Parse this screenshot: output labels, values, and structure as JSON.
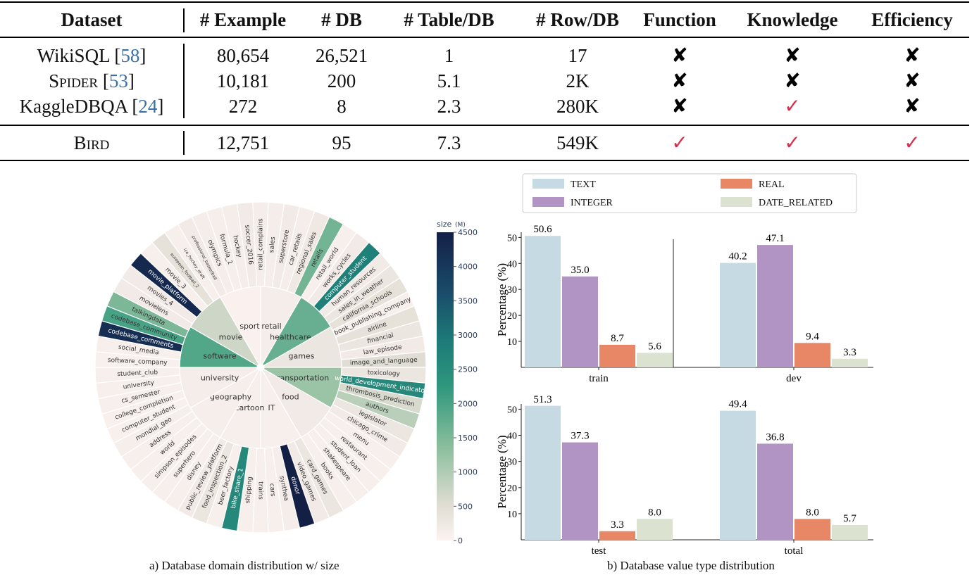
{
  "table": {
    "headers": [
      "Dataset",
      "# Example",
      "# DB",
      "# Table/DB",
      "# Row/DB",
      "Function",
      "Knowledge",
      "Efficiency"
    ],
    "rows": [
      {
        "name": "WikiSQL",
        "cite": "58",
        "example": "80,654",
        "db": "26,521",
        "table_per_db": "1",
        "row_per_db": "17",
        "function": "✘",
        "knowledge": "✘",
        "efficiency": "✘"
      },
      {
        "name": "Spider",
        "cite": "53",
        "example": "10,181",
        "db": "200",
        "table_per_db": "5.1",
        "row_per_db": "2K",
        "function": "✘",
        "knowledge": "✘",
        "efficiency": "✘"
      },
      {
        "name": "KaggleDBQA",
        "cite": "24",
        "example": "272",
        "db": "8",
        "table_per_db": "2.3",
        "row_per_db": "280K",
        "function": "✘",
        "knowledge": "✓",
        "efficiency": "✘"
      },
      {
        "name": "Bird",
        "cite": "",
        "example": "12,751",
        "db": "95",
        "table_per_db": "7.3",
        "row_per_db": "549K",
        "function": "✓",
        "knowledge": "✓",
        "efficiency": "✓"
      }
    ]
  },
  "captions": {
    "a": "a) Database domain distribution w/ size",
    "b": "b) Database value type distribution"
  },
  "colorbar": {
    "title": "size",
    "unit": "(M)",
    "ticks": [
      "0",
      "500",
      "1000",
      "1500",
      "2000",
      "2500",
      "3000",
      "3500",
      "4000",
      "4500"
    ],
    "max": 4500
  },
  "sunburst": {
    "inner": [
      {
        "name": "sport",
        "size": 60
      },
      {
        "name": "retail",
        "size": 150
      },
      {
        "name": "healthcare",
        "size": 1700
      },
      {
        "name": "games",
        "size": 300
      },
      {
        "name": "transportation",
        "size": 1200
      },
      {
        "name": "food",
        "size": 200
      },
      {
        "name": "IT",
        "size": 100
      },
      {
        "name": "cartoon",
        "size": 100
      },
      {
        "name": "geography",
        "size": 120
      },
      {
        "name": "university",
        "size": 150
      },
      {
        "name": "software",
        "size": 1900
      },
      {
        "name": "movie",
        "size": 700
      }
    ],
    "outer": [
      {
        "name": "professional_basketball",
        "size": 200
      },
      {
        "name": "olympics",
        "size": 150
      },
      {
        "name": "formula_1",
        "size": 120
      },
      {
        "name": "hockey",
        "size": 150
      },
      {
        "name": "soccer_2016",
        "size": 200
      },
      {
        "name": "retail_complains",
        "size": 150
      },
      {
        "name": "sales",
        "size": 150
      },
      {
        "name": "superstore",
        "size": 200
      },
      {
        "name": "car_retails",
        "size": 150
      },
      {
        "name": "regional_sales",
        "size": 250
      },
      {
        "name": "retails",
        "size": 1600
      },
      {
        "name": "retail_world",
        "size": 100
      },
      {
        "name": "works_cycles",
        "size": 200
      },
      {
        "name": "computer_student",
        "size": 2800
      },
      {
        "name": "human_resources",
        "size": 200
      },
      {
        "name": "sales_in_weather",
        "size": 300
      },
      {
        "name": "california_schools",
        "size": 400
      },
      {
        "name": "book_publishing_company",
        "size": 100
      },
      {
        "name": "airline",
        "size": 400
      },
      {
        "name": "financial",
        "size": 300
      },
      {
        "name": "law_episode",
        "size": 200
      },
      {
        "name": "image_and_language",
        "size": 500
      },
      {
        "name": "toxicology",
        "size": 300
      },
      {
        "name": "world_development_indicators",
        "size": 2600
      },
      {
        "name": "thrombosis_prediction",
        "size": 600
      },
      {
        "name": "authors",
        "size": 900
      },
      {
        "name": "legislator",
        "size": 300
      },
      {
        "name": "chicago_crime",
        "size": 200
      },
      {
        "name": "menu",
        "size": 100
      },
      {
        "name": "restaurant",
        "size": 100
      },
      {
        "name": "student_loan",
        "size": 100
      },
      {
        "name": "shakespeare",
        "size": 100
      },
      {
        "name": "books",
        "size": 100
      },
      {
        "name": "card_games",
        "size": 300
      },
      {
        "name": "video_games",
        "size": 200
      },
      {
        "name": "donor",
        "size": 4500
      },
      {
        "name": "synthea",
        "size": 150
      },
      {
        "name": "cars",
        "size": 100
      },
      {
        "name": "trains",
        "size": 100
      },
      {
        "name": "shipping",
        "size": 100
      },
      {
        "name": "bike_share_1",
        "size": 2600
      },
      {
        "name": "beer_factory",
        "size": 100
      },
      {
        "name": "food_inspection_2",
        "size": 300
      },
      {
        "name": "public_review_platform",
        "size": 200
      },
      {
        "name": "disney",
        "size": 100
      },
      {
        "name": "superhero",
        "size": 100
      },
      {
        "name": "simpson_episodes",
        "size": 100
      },
      {
        "name": "world",
        "size": 100
      },
      {
        "name": "address",
        "size": 100
      },
      {
        "name": "mondial_geo",
        "size": 120
      },
      {
        "name": "computer_student",
        "size": 80
      },
      {
        "name": "college_completion",
        "size": 80
      },
      {
        "name": "cs_semester",
        "size": 100
      },
      {
        "name": "university",
        "size": 100
      },
      {
        "name": "student_club",
        "size": 100
      },
      {
        "name": "software_company",
        "size": 80
      },
      {
        "name": "social_media",
        "size": 100
      },
      {
        "name": "codebase_comments",
        "size": 4200
      },
      {
        "name": "codebase_community",
        "size": 2000
      },
      {
        "name": "talkingdata",
        "size": 1500
      },
      {
        "name": "movielens",
        "size": 200
      },
      {
        "name": "movies_4",
        "size": 200
      },
      {
        "name": "movie_platform",
        "size": 4300
      },
      {
        "name": "movie_3",
        "size": 100
      },
      {
        "name": "european_football_2",
        "size": 400
      },
      {
        "name": "ice_hockey_draft",
        "size": 100
      }
    ],
    "small_labels": [
      "professional_basketball",
      "european_football_2",
      "ice_hockey_draft",
      "sport",
      "retail",
      "movie"
    ]
  },
  "chart_data": {
    "type": "bar",
    "legend": [
      "TEXT",
      "REAL",
      "INTEGER",
      "DATE_RELATED"
    ],
    "ylabel": "Percentage (%)",
    "ylim": [
      0,
      52
    ],
    "yticks": [
      10,
      20,
      30,
      40,
      50
    ],
    "categories": [
      "train",
      "dev",
      "test",
      "total"
    ],
    "series": [
      {
        "name": "TEXT",
        "color": "#c6dae3",
        "values": [
          50.6,
          40.2,
          51.3,
          49.4
        ]
      },
      {
        "name": "INTEGER",
        "color": "#b294c4",
        "values": [
          35.0,
          47.1,
          37.3,
          36.8
        ]
      },
      {
        "name": "REAL",
        "color": "#e88766",
        "values": [
          8.7,
          9.4,
          3.3,
          8.0
        ]
      },
      {
        "name": "DATE_RELATED",
        "color": "#dbe3d0",
        "values": [
          5.6,
          3.3,
          8.0,
          5.7
        ]
      }
    ]
  }
}
